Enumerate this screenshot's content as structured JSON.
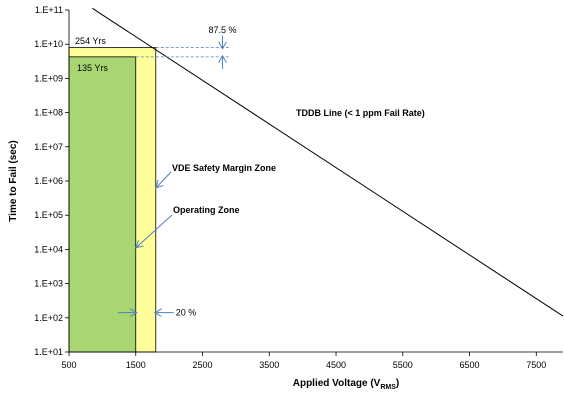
{
  "chart_data": {
    "type": "line",
    "xlabel": "Applied Voltage (V",
    "xlabel_sub": "RMS",
    "xlabel_close": ")",
    "ylabel": "Time to Fail (sec)",
    "xlim": [
      500,
      7900
    ],
    "ylim_exponent": [
      1,
      11
    ],
    "y_scale": "log",
    "x_ticks": [
      500,
      1500,
      2500,
      3500,
      4500,
      5500,
      6500,
      7500
    ],
    "x_tick_labels": [
      "500",
      "1500",
      "2500",
      "3500",
      "4500",
      "5500",
      "6500",
      "7500"
    ],
    "y_ticks_exponent": [
      1,
      2,
      3,
      4,
      5,
      6,
      7,
      8,
      9,
      10,
      11
    ],
    "y_tick_labels": [
      "1.E+01",
      "1.E+02",
      "1.E+03",
      "1.E+04",
      "1.E+05",
      "1.E+06",
      "1.E+07",
      "1.E+08",
      "1.E+09",
      "1.E+10",
      "1.E+11"
    ],
    "grid": false,
    "series": [
      {
        "name": "TDDB Line (< 1 ppm Fail Rate)",
        "color": "#000000",
        "x": [
          850,
          7900
        ],
        "y_exponent": [
          11.05,
          2.05
        ]
      }
    ],
    "regions": [
      {
        "label": "Operating Zone",
        "color": "#a9d672",
        "x": [
          500,
          1500
        ],
        "y_exponent": [
          1,
          9.63
        ],
        "value_label": "135 Yrs"
      },
      {
        "label": "VDE Safety Margin Zone",
        "color": "#ffff99",
        "x": [
          500,
          1800
        ],
        "y_exponent": [
          1,
          9.9
        ],
        "value_label": "254 Yrs"
      }
    ],
    "annotations": [
      {
        "text": "87.5 %",
        "kind": "vertical-gap",
        "x": 2800
      },
      {
        "text": "20 %",
        "kind": "horizontal-gap",
        "y_exponent": 2.15
      }
    ]
  }
}
